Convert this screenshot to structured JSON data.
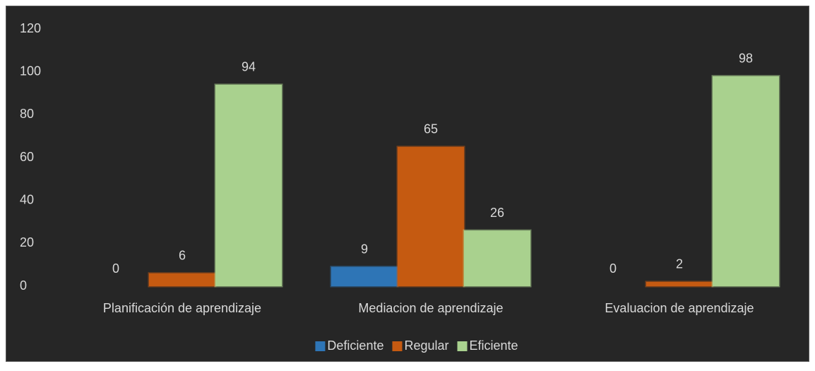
{
  "chart_data": {
    "type": "bar",
    "categories": [
      "Planificación de aprendizaje",
      "Mediacion de aprendizaje",
      "Evaluacion de aprendizaje"
    ],
    "series": [
      {
        "name": "Deficiente",
        "color": "#2e75b6",
        "values": [
          0,
          9,
          0
        ]
      },
      {
        "name": "Regular",
        "color": "#c55a11",
        "values": [
          6,
          65,
          2
        ]
      },
      {
        "name": "Eficiente",
        "color": "#a9d18e",
        "values": [
          94,
          26,
          98
        ]
      }
    ],
    "ylim": [
      0,
      120
    ],
    "yticks": [
      0,
      20,
      40,
      60,
      80,
      100,
      120
    ],
    "grid": false,
    "legend": "bottom"
  }
}
